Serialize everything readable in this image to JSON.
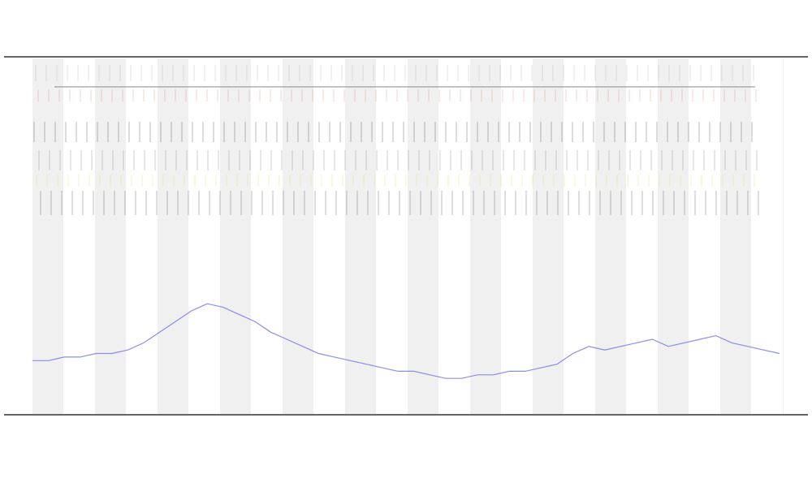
{
  "chart_data": {
    "type": "line",
    "x": [
      0,
      1,
      2,
      3,
      4,
      5,
      6,
      7,
      8,
      9,
      10,
      11,
      12,
      13,
      14,
      15,
      16,
      17,
      18,
      19,
      20,
      21,
      22,
      23,
      24,
      25,
      26,
      27,
      28,
      29,
      30,
      31,
      32,
      33,
      34,
      35,
      36,
      37,
      38,
      39,
      40,
      41,
      42,
      43,
      44,
      45,
      46,
      47
    ],
    "series": [
      {
        "color": "#6f72e8",
        "values": [
          15,
          15,
          16,
          16,
          17,
          17,
          18,
          20,
          23,
          26,
          29,
          31,
          30,
          28,
          26,
          23,
          21,
          19,
          17,
          16,
          15,
          14,
          13,
          12,
          12,
          11,
          10,
          10,
          11,
          11,
          12,
          12,
          13,
          14,
          17,
          19,
          18,
          19,
          20,
          21,
          19,
          20,
          21,
          22,
          20,
          19,
          18,
          17
        ]
      }
    ],
    "xlim": [
      0,
      47
    ],
    "ylim": [
      0,
      100
    ]
  }
}
